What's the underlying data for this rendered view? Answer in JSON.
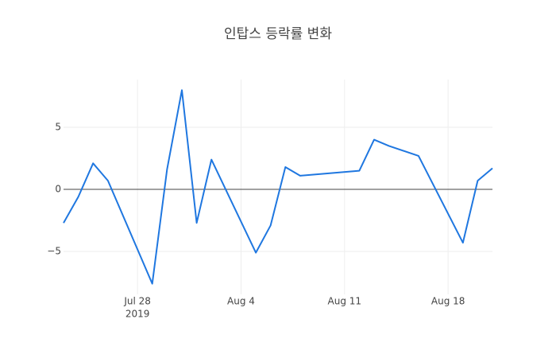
{
  "chart_data": {
    "type": "line",
    "title": "인탑스 등락률 변화",
    "x": [
      "2019-07-23",
      "2019-07-24",
      "2019-07-25",
      "2019-07-26",
      "2019-07-29",
      "2019-07-30",
      "2019-07-31",
      "2019-08-01",
      "2019-08-02",
      "2019-08-05",
      "2019-08-06",
      "2019-08-07",
      "2019-08-08",
      "2019-08-12",
      "2019-08-13",
      "2019-08-14",
      "2019-08-16",
      "2019-08-19",
      "2019-08-20",
      "2019-08-21"
    ],
    "series": [
      {
        "color": "#1f77e0",
        "values": [
          -2.7,
          -0.6,
          2.1,
          0.7,
          -7.6,
          1.6,
          8.0,
          -2.7,
          2.4,
          -5.1,
          -2.9,
          1.8,
          1.1,
          1.5,
          4.0,
          3.5,
          2.7,
          -4.3,
          0.7,
          1.7
        ]
      }
    ],
    "xlim": [
      "2019-07-23",
      "2019-08-21"
    ],
    "xticks": [
      {
        "value": "2019-07-28",
        "label": "Jul 28"
      },
      {
        "value": "2019-08-04",
        "label": "Aug 4"
      },
      {
        "value": "2019-08-11",
        "label": "Aug 11"
      },
      {
        "value": "2019-08-18",
        "label": "Aug 18"
      }
    ],
    "xtick_year": "2019",
    "ylim": [
      -8.46,
      8.85
    ],
    "yticks": [
      {
        "value": -5,
        "label": "−5"
      },
      0,
      5
    ],
    "grid": true,
    "zero_line": true
  }
}
